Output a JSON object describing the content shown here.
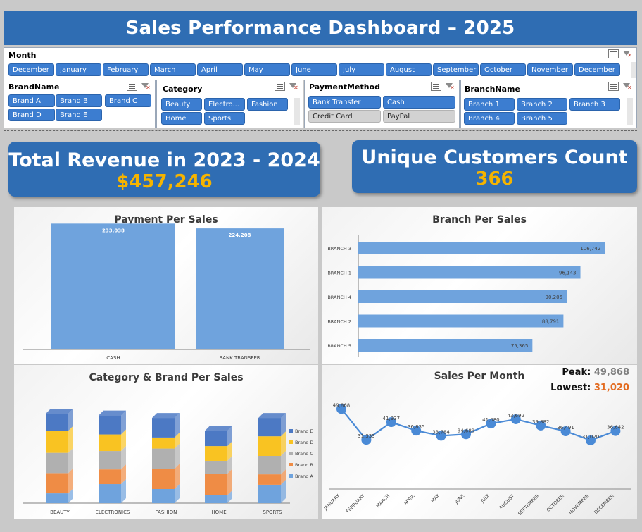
{
  "dashboard": {
    "title": "Sales Performance Dashboard – 2025"
  },
  "slicers": {
    "month": {
      "header": "Month",
      "items": [
        "December",
        "January",
        "February",
        "March",
        "April",
        "May",
        "June",
        "July",
        "August",
        "September",
        "October",
        "November",
        "December"
      ]
    },
    "brand": {
      "header": "BrandName",
      "items": [
        "Brand A",
        "Brand B",
        "Brand C",
        "Brand D",
        "Brand E"
      ]
    },
    "category": {
      "header": "Category",
      "items": [
        "Beauty",
        "Electro...",
        "Fashion",
        "Home",
        "Sports"
      ]
    },
    "payment": {
      "header": "PaymentMethod",
      "items": [
        "Bank Transfer",
        "Cash",
        "Credit Card",
        "PayPal"
      ]
    },
    "branch": {
      "header": "BranchName",
      "items": [
        "Branch 1",
        "Branch 2",
        "Branch 3",
        "Branch 4",
        "Branch 5"
      ]
    }
  },
  "kpis": {
    "revenue": {
      "label": "Total Revenue in 2023 - 2024",
      "value": "$457,246"
    },
    "customers": {
      "label": "Unique Customers Count",
      "value": "366"
    }
  },
  "peak": {
    "peak_label": "Peak:",
    "peak_value": "49,868",
    "lowest_label": "Lowest:",
    "lowest_value": "31,020"
  },
  "colors": {
    "header_blue": "#2f6db3",
    "bar_blue": "#6fa3dd",
    "brand_a": "#6fa3dd",
    "brand_b": "#ef8c45",
    "brand_c": "#b0b0b0",
    "brand_d": "#f9c322",
    "brand_e": "#4c79c4",
    "accent_gold": "#f5b400"
  },
  "chart_data": [
    {
      "type": "bar",
      "title": "Payment Per Sales",
      "categories": [
        "CASH",
        "BANK TRANSFER"
      ],
      "values": [
        233038,
        224208
      ],
      "labels": [
        "233,038",
        "224,208"
      ]
    },
    {
      "type": "bar",
      "orientation": "horizontal",
      "title": "Branch Per Sales",
      "categories": [
        "BRANCH 3",
        "BRANCH 1",
        "BRANCH 4",
        "BRANCH 2",
        "BRANCH 5"
      ],
      "values": [
        106742,
        96143,
        90205,
        88791,
        75365
      ],
      "labels": [
        "106,742",
        "96,143",
        "90,205",
        "88,791",
        "75,365"
      ]
    },
    {
      "type": "bar",
      "stacked": true,
      "title": "Category & Brand Per Sales",
      "categories": [
        "BEAUTY",
        "ELECTRONICS",
        "FASHION",
        "HOME",
        "SPORTS"
      ],
      "series": [
        {
          "name": "Brand A",
          "values": [
            16000,
            31000,
            23000,
            13000,
            30000
          ]
        },
        {
          "name": "Brand B",
          "values": [
            33000,
            24000,
            33000,
            35000,
            17000
          ]
        },
        {
          "name": "Brand C",
          "values": [
            33000,
            30000,
            33000,
            21000,
            30000
          ]
        },
        {
          "name": "Brand D",
          "values": [
            36000,
            27000,
            18000,
            24000,
            32000
          ]
        },
        {
          "name": "Brand E",
          "values": [
            28000,
            31000,
            32000,
            25000,
            30000
          ]
        }
      ],
      "legend": [
        "Brand E",
        "Brand D",
        "Brand C",
        "Brand B",
        "Brand A"
      ],
      "legend_position": "right"
    },
    {
      "type": "line",
      "title": "Sales Per Month",
      "categories": [
        "JANUARY",
        "FEBRUARY",
        "MARCH",
        "APRIL",
        "MAY",
        "JUNE",
        "JULY",
        "AUGUST",
        "SEPTEMBER",
        "OCTOBER",
        "NOVEMBER",
        "DECEMBER"
      ],
      "values": [
        49868,
        31333,
        41937,
        36835,
        33784,
        34683,
        41080,
        43692,
        39882,
        36491,
        31020,
        36642
      ],
      "labels": [
        "49,868",
        "31,333",
        "41,937",
        "36,835",
        "33,784",
        "34,683",
        "41,080",
        "43,692",
        "39,882",
        "36,491",
        "31,020",
        "36,642"
      ]
    }
  ]
}
